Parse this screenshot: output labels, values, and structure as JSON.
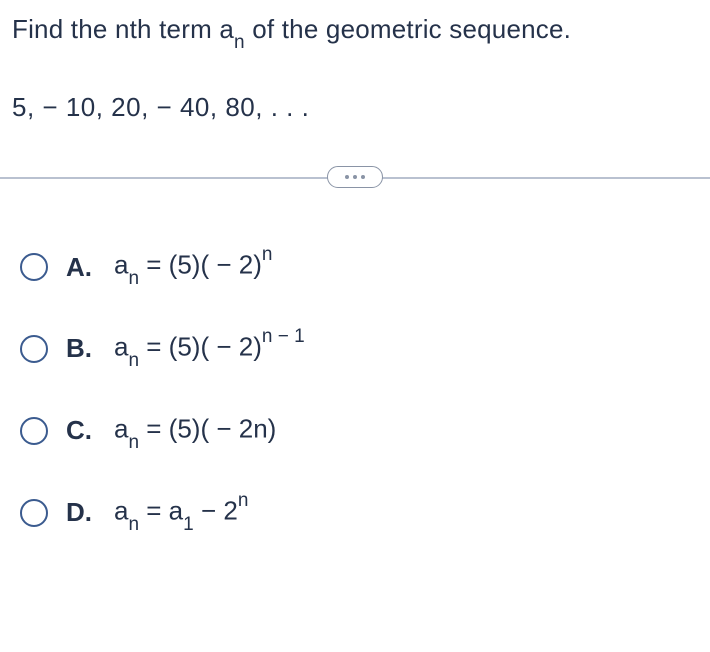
{
  "question": {
    "prompt_prefix": "Find the nth term a",
    "prompt_sub": "n",
    "prompt_suffix": " of the geometric sequence.",
    "sequence": "5,  − 10, 20,  − 40, 80, . . .",
    "text_color": "#25324a",
    "background_color": "#ffffff",
    "font_size": 26,
    "sub_font_size": 19
  },
  "divider": {
    "line_color": "#b9c1d0",
    "pill_border_color": "#8a94a6",
    "dot_color": "#8a94a6"
  },
  "radio": {
    "border_color": "#3b5b8f"
  },
  "options": [
    {
      "letter": "A.",
      "prefix": "a",
      "sub1": "n",
      "mid": " = (5)( − 2)",
      "sup": "n",
      "suffix": ""
    },
    {
      "letter": "B.",
      "prefix": "a",
      "sub1": "n",
      "mid": " = (5)( − 2)",
      "sup": "n − 1",
      "suffix": ""
    },
    {
      "letter": "C.",
      "prefix": "a",
      "sub1": "n",
      "mid": " = (5)( − 2n)",
      "sup": "",
      "suffix": ""
    },
    {
      "letter": "D.",
      "prefix": "a",
      "sub1": "n",
      "mid": " = a",
      "sub2": "1",
      "mid2": " − 2",
      "sup": "n",
      "suffix": ""
    }
  ]
}
